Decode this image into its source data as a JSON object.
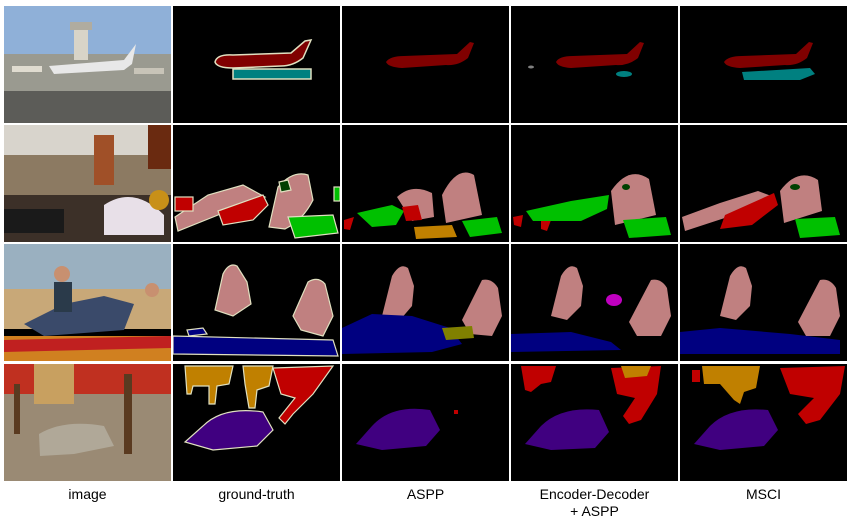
{
  "columns": [
    {
      "label": "image"
    },
    {
      "label": "ground-truth"
    },
    {
      "label": "ASPP"
    },
    {
      "label": "Encoder-Decoder\n+ ASPP"
    },
    {
      "label": "MSCI"
    }
  ],
  "rows": [
    "airplane",
    "living-room",
    "beach-fish",
    "dog-deck"
  ],
  "colors": {
    "aeroplane": "#800000",
    "boat": "#000080",
    "fish-bird": "#808000",
    "cat": "#400080",
    "chair": "#C00000",
    "table": "#C08000",
    "sofa": "#00C000",
    "plant": "#004000",
    "person": "#C08080",
    "bus": "#008080",
    "boundary": "#E0E0C0",
    "background": "#000000"
  }
}
